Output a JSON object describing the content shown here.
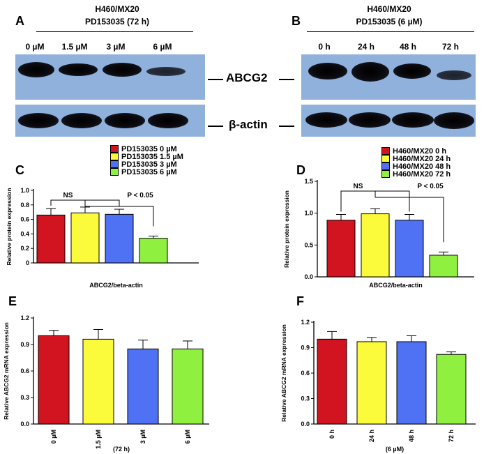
{
  "panels": {
    "A": {
      "letter": "A",
      "header_line1": "H460/MX20",
      "header_line2": "PD153035 (72 h)",
      "lanes": [
        "0 µM",
        "1.5 µM",
        "3 µM",
        "6 µM"
      ],
      "abcg2_intensity": [
        1.0,
        0.85,
        0.9,
        0.55
      ]
    },
    "B": {
      "letter": "B",
      "header_line1": "H460/MX20",
      "header_line2": "PD153035 (6 µM)",
      "lanes": [
        "0 h",
        "24 h",
        "48 h",
        "72 h"
      ],
      "abcg2_intensity": [
        1.0,
        1.0,
        0.9,
        0.5
      ]
    },
    "proteins": {
      "abcg2": "ABCG2",
      "actin": "β-actin"
    },
    "C": {
      "letter": "C"
    },
    "D": {
      "letter": "D"
    },
    "E": {
      "letter": "E"
    },
    "F": {
      "letter": "F"
    }
  },
  "colors": {
    "red": "#d1141f",
    "yellow": "#fbfb3b",
    "blue": "#4f71f4",
    "green": "#8ff040"
  },
  "chart_data": [
    {
      "id": "C",
      "type": "bar",
      "categories": [
        "PD153035 0 µM",
        "PD153035 1.5 µM",
        "PD153035 3 µM",
        "PD153035 6 µM"
      ],
      "values": [
        0.66,
        0.69,
        0.67,
        0.34
      ],
      "errors": [
        0.09,
        0.08,
        0.07,
        0.03
      ],
      "colors": [
        "#d1141f",
        "#fbfb3b",
        "#4f71f4",
        "#8ff040"
      ],
      "legend": [
        "PD153035 0 µM",
        "PD153035 1.5 µM",
        "PD153035 3 µM",
        "PD153035 6 µM"
      ],
      "ylabel": "Relative protein expression",
      "xlabel": "ABCG2/beta-actin",
      "ylim": [
        0,
        1.0
      ],
      "yticks": [
        "0",
        "0.2",
        "0.4",
        "0.6",
        "0.8",
        "1.0"
      ],
      "annotations": [
        "NS",
        "P < 0.05"
      ]
    },
    {
      "id": "D",
      "type": "bar",
      "categories": [
        "H460/MX20 0 h",
        "H460/MX20 24 h",
        "H460/MX20 48 h",
        "H460/MX20 72 h"
      ],
      "values": [
        0.89,
        0.99,
        0.89,
        0.34
      ],
      "errors": [
        0.09,
        0.08,
        0.09,
        0.05
      ],
      "colors": [
        "#d1141f",
        "#fbfb3b",
        "#4f71f4",
        "#8ff040"
      ],
      "legend": [
        "H460/MX20 0 h",
        "H460/MX20 24 h",
        "H460/MX20 48 h",
        "H460/MX20 72 h"
      ],
      "ylabel": "Relative protein expression",
      "xlabel": "ABCG2/beta-actin",
      "ylim": [
        0,
        1.5
      ],
      "yticks": [
        "0.0",
        "0.5",
        "1.0",
        "1.5"
      ],
      "annotations": [
        "NS",
        "P < 0.05"
      ]
    },
    {
      "id": "E",
      "type": "bar",
      "categories": [
        "0 µM",
        "1.5 µM",
        "3 µM",
        "6 µM"
      ],
      "values": [
        1.0,
        0.96,
        0.85,
        0.85
      ],
      "errors": [
        0.06,
        0.11,
        0.1,
        0.09
      ],
      "colors": [
        "#d1141f",
        "#fbfb3b",
        "#4f71f4",
        "#8ff040"
      ],
      "ylabel": "Relative ABCG2 mRNA expression",
      "xlabel": "(72 h)",
      "ylim": [
        0,
        1.2
      ],
      "yticks": [
        "0.0",
        "0.3",
        "0.6",
        "0.9",
        "1.2"
      ]
    },
    {
      "id": "F",
      "type": "bar",
      "categories": [
        "0 h",
        "24 h",
        "48 h",
        "72 h"
      ],
      "values": [
        1.0,
        0.97,
        0.97,
        0.82
      ],
      "errors": [
        0.09,
        0.05,
        0.07,
        0.03
      ],
      "colors": [
        "#d1141f",
        "#fbfb3b",
        "#4f71f4",
        "#8ff040"
      ],
      "ylabel": "Relative ABCG2 mRNA expression",
      "xlabel": "(6 µM)",
      "ylim": [
        0,
        1.2
      ],
      "yticks": [
        "0.0",
        "0.3",
        "0.6",
        "0.9",
        "1.2"
      ]
    }
  ]
}
